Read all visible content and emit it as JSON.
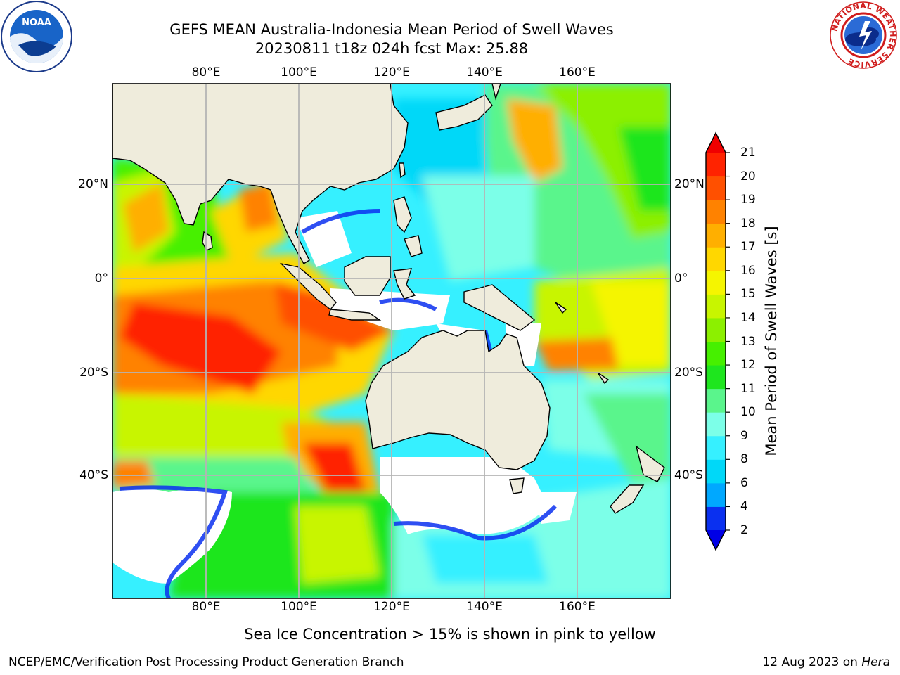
{
  "title": {
    "line1": "GEFS MEAN Australia-Indonesia Mean Period of Swell Waves",
    "line2": "20230811 t18z 024h fcst   Max: 25.88"
  },
  "map": {
    "lon_ticks": [
      "80°E",
      "100°E",
      "120°E",
      "140°E",
      "160°E"
    ],
    "lat_ticks": [
      "20°N",
      "0°",
      "20°S",
      "40°S"
    ],
    "land_color": "#efecdc",
    "grid_color": "#b4b4b4"
  },
  "colorbar": {
    "label": "Mean Period of Swell Waves [s]",
    "levels": [
      "2",
      "4",
      "6",
      "8",
      "9",
      "10",
      "11",
      "12",
      "13",
      "14",
      "15",
      "16",
      "17",
      "18",
      "19",
      "20",
      "21"
    ],
    "colors": [
      "#0a30f0",
      "#00a8ff",
      "#00d8f8",
      "#36f0ff",
      "#7cffe8",
      "#5af58c",
      "#1ee61e",
      "#46f000",
      "#8cf000",
      "#c8f500",
      "#f5f500",
      "#ffd700",
      "#ffaf00",
      "#ff8200",
      "#ff5000",
      "#ff2300"
    ],
    "under_color": "#0000e6",
    "over_color": "#f00000"
  },
  "notes": {
    "sea_ice": "Sea Ice Concentration > 15% is shown in pink to yellow"
  },
  "footer": {
    "left": "NCEP/EMC/Verification Post Processing Product Generation Branch",
    "date": "12 Aug 2023 on ",
    "host": "Hera"
  },
  "logos": {
    "noaa": "NOAA",
    "nws": "NATIONAL WEATHER SERVICE"
  }
}
